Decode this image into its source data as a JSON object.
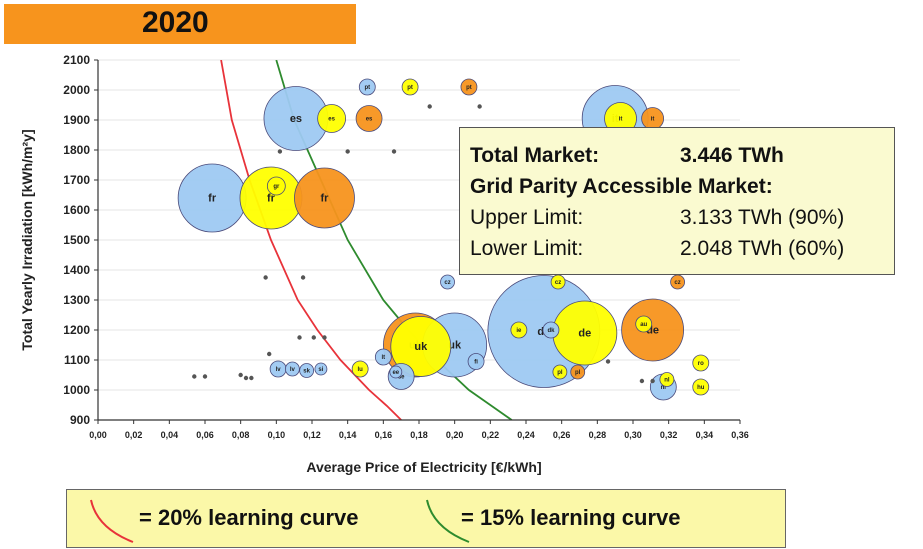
{
  "title": "2020",
  "infobox": {
    "rows": [
      {
        "label": "Total Market:",
        "value": "3.446 TWh",
        "bold": true
      },
      {
        "label": "Grid Parity Accessible Market:",
        "value": "",
        "bold": true
      },
      {
        "label": "Upper Limit:",
        "value": "3.133 TWh (90%)",
        "bold": false
      },
      {
        "label": "Lower Limit:",
        "value": "2.048 TWh (60%)",
        "bold": false
      }
    ]
  },
  "legend": {
    "items": [
      {
        "text": "= 20% learning curve",
        "color": "#e8333a"
      },
      {
        "text": "= 15% learning curve",
        "color": "#2e8b2e"
      }
    ]
  },
  "colors": {
    "blue": "#9ec9f2",
    "yellow": "#ffff00",
    "orange": "#f7941d"
  },
  "chart_data": {
    "type": "scatter",
    "xlabel": "Average Price of Electricity [€/kWh]",
    "ylabel": "Total Yearly Irradiation [kWh/m²y]",
    "xlim": [
      0,
      0.36
    ],
    "ylim": [
      900,
      2100
    ],
    "x_ticks": [
      "0,00",
      "0,02",
      "0,04",
      "0,06",
      "0,08",
      "0,10",
      "0,12",
      "0,14",
      "0,16",
      "0,18",
      "0,20",
      "0,22",
      "0,24",
      "0,26",
      "0,28",
      "0,30",
      "0,32",
      "0,34",
      "0,36"
    ],
    "y_ticks": [
      "900",
      "1000",
      "1100",
      "1200",
      "1300",
      "1400",
      "1500",
      "1600",
      "1700",
      "1800",
      "1900",
      "2000",
      "2100"
    ],
    "curves": [
      {
        "name": "20% learning curve",
        "color": "#e8333a",
        "points": [
          [
            0.069,
            2100
          ],
          [
            0.075,
            1900
          ],
          [
            0.085,
            1700
          ],
          [
            0.097,
            1500
          ],
          [
            0.112,
            1300
          ],
          [
            0.123,
            1200
          ],
          [
            0.136,
            1100
          ],
          [
            0.152,
            1000
          ],
          [
            0.162,
            947
          ],
          [
            0.17,
            900
          ]
        ]
      },
      {
        "name": "15% learning curve",
        "color": "#2e8b2e",
        "points": [
          [
            0.1,
            2100
          ],
          [
            0.11,
            1900
          ],
          [
            0.125,
            1700
          ],
          [
            0.14,
            1500
          ],
          [
            0.16,
            1300
          ],
          [
            0.174,
            1200
          ],
          [
            0.19,
            1100
          ],
          [
            0.208,
            1000
          ],
          [
            0.22,
            950
          ],
          [
            0.232,
            900
          ]
        ]
      }
    ],
    "bubbles": [
      {
        "x": 0.064,
        "y": 1640,
        "r": 34,
        "c": "blue",
        "label": "fr"
      },
      {
        "x": 0.097,
        "y": 1640,
        "r": 31,
        "c": "yellow",
        "label": "fr"
      },
      {
        "x": 0.127,
        "y": 1640,
        "r": 30,
        "c": "orange",
        "label": "fr"
      },
      {
        "x": 0.1,
        "y": 1680,
        "r": 9,
        "c": "yellow",
        "label": "gr"
      },
      {
        "x": 0.111,
        "y": 1905,
        "r": 32,
        "c": "blue",
        "label": "es"
      },
      {
        "x": 0.131,
        "y": 1905,
        "r": 14,
        "c": "yellow",
        "label": "es"
      },
      {
        "x": 0.152,
        "y": 1905,
        "r": 13,
        "c": "orange",
        "label": "es"
      },
      {
        "x": 0.151,
        "y": 2010,
        "r": 8,
        "c": "blue",
        "label": "pt"
      },
      {
        "x": 0.175,
        "y": 2010,
        "r": 8,
        "c": "yellow",
        "label": "pt"
      },
      {
        "x": 0.208,
        "y": 2010,
        "r": 8,
        "c": "orange",
        "label": "pt"
      },
      {
        "x": 0.29,
        "y": 1905,
        "r": 33,
        "c": "blue",
        "label": "it"
      },
      {
        "x": 0.293,
        "y": 1905,
        "r": 16,
        "c": "yellow",
        "label": "it"
      },
      {
        "x": 0.311,
        "y": 1905,
        "r": 11,
        "c": "orange",
        "label": "it"
      },
      {
        "x": 0.25,
        "y": 1195,
        "r": 56,
        "c": "blue",
        "label": "de"
      },
      {
        "x": 0.273,
        "y": 1190,
        "r": 32,
        "c": "yellow",
        "label": "de"
      },
      {
        "x": 0.311,
        "y": 1200,
        "r": 31,
        "c": "orange",
        "label": "de"
      },
      {
        "x": 0.178,
        "y": 1150,
        "r": 32,
        "c": "orange",
        "label": "uk"
      },
      {
        "x": 0.2,
        "y": 1150,
        "r": 32,
        "c": "blue",
        "label": "uk"
      },
      {
        "x": 0.181,
        "y": 1145,
        "r": 30,
        "c": "yellow",
        "label": "uk"
      },
      {
        "x": 0.196,
        "y": 1360,
        "r": 7,
        "c": "blue",
        "label": "cz"
      },
      {
        "x": 0.258,
        "y": 1360,
        "r": 7,
        "c": "yellow",
        "label": "cz"
      },
      {
        "x": 0.325,
        "y": 1360,
        "r": 7,
        "c": "orange",
        "label": "cz"
      },
      {
        "x": 0.317,
        "y": 1010,
        "r": 13,
        "c": "blue",
        "label": "nl"
      },
      {
        "x": 0.319,
        "y": 1035,
        "r": 7,
        "c": "yellow",
        "label": "nl"
      },
      {
        "x": 0.338,
        "y": 1010,
        "r": 8,
        "c": "yellow",
        "label": "hu"
      },
      {
        "x": 0.338,
        "y": 1090,
        "r": 8,
        "c": "yellow",
        "label": "ro"
      },
      {
        "x": 0.306,
        "y": 1220,
        "r": 8,
        "c": "yellow",
        "label": "au"
      },
      {
        "x": 0.269,
        "y": 1060,
        "r": 7,
        "c": "orange",
        "label": "pl"
      },
      {
        "x": 0.259,
        "y": 1060,
        "r": 7,
        "c": "yellow",
        "label": "pl"
      },
      {
        "x": 0.236,
        "y": 1200,
        "r": 8,
        "c": "yellow",
        "label": "ie"
      },
      {
        "x": 0.254,
        "y": 1200,
        "r": 8,
        "c": "blue",
        "label": "dk"
      },
      {
        "x": 0.17,
        "y": 1045,
        "r": 13,
        "c": "blue",
        "label": "se"
      },
      {
        "x": 0.147,
        "y": 1070,
        "r": 8,
        "c": "yellow",
        "label": "lu"
      },
      {
        "x": 0.16,
        "y": 1110,
        "r": 8,
        "c": "blue",
        "label": "lt"
      },
      {
        "x": 0.167,
        "y": 1060,
        "r": 6,
        "c": "blue",
        "label": "ee"
      },
      {
        "x": 0.212,
        "y": 1095,
        "r": 8,
        "c": "blue",
        "label": "fi"
      },
      {
        "x": 0.101,
        "y": 1070,
        "r": 8,
        "c": "blue",
        "label": "lv"
      },
      {
        "x": 0.109,
        "y": 1070,
        "r": 7,
        "c": "blue",
        "label": "lv"
      },
      {
        "x": 0.117,
        "y": 1065,
        "r": 7,
        "c": "blue",
        "label": "sk"
      },
      {
        "x": 0.125,
        "y": 1070,
        "r": 6,
        "c": "blue",
        "label": "si"
      }
    ],
    "dots": [
      {
        "x": 0.186,
        "y": 1945
      },
      {
        "x": 0.214,
        "y": 1945
      },
      {
        "x": 0.102,
        "y": 1795
      },
      {
        "x": 0.14,
        "y": 1795
      },
      {
        "x": 0.166,
        "y": 1795
      },
      {
        "x": 0.094,
        "y": 1375
      },
      {
        "x": 0.115,
        "y": 1375
      },
      {
        "x": 0.113,
        "y": 1175
      },
      {
        "x": 0.121,
        "y": 1175
      },
      {
        "x": 0.127,
        "y": 1175
      },
      {
        "x": 0.054,
        "y": 1045
      },
      {
        "x": 0.06,
        "y": 1045
      },
      {
        "x": 0.08,
        "y": 1050
      },
      {
        "x": 0.083,
        "y": 1040
      },
      {
        "x": 0.086,
        "y": 1040
      },
      {
        "x": 0.096,
        "y": 1120
      },
      {
        "x": 0.286,
        "y": 1095
      },
      {
        "x": 0.305,
        "y": 1030
      },
      {
        "x": 0.311,
        "y": 1030
      }
    ]
  }
}
